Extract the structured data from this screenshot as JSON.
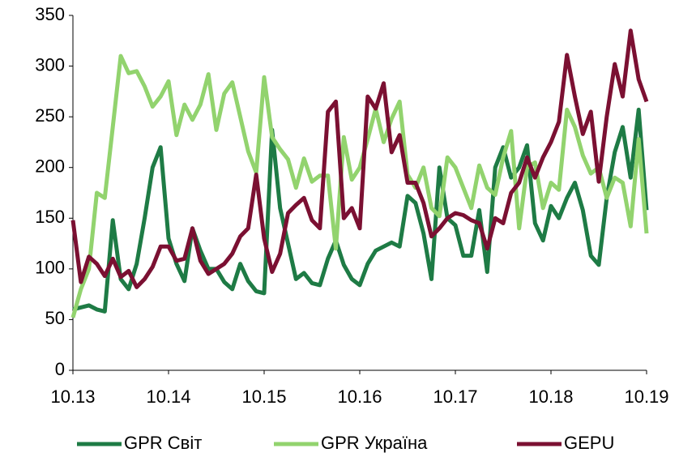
{
  "chart_data": {
    "type": "line",
    "categories": [
      "10.13",
      null,
      null,
      null,
      null,
      null,
      null,
      null,
      null,
      null,
      null,
      null,
      "10.14",
      null,
      null,
      null,
      null,
      null,
      null,
      null,
      null,
      null,
      null,
      null,
      "10.15",
      null,
      null,
      null,
      null,
      null,
      null,
      null,
      null,
      null,
      null,
      null,
      "10.16",
      null,
      null,
      null,
      null,
      null,
      null,
      null,
      null,
      null,
      null,
      null,
      "10.17",
      null,
      null,
      null,
      null,
      null,
      null,
      null,
      null,
      null,
      null,
      null,
      "10.18",
      null,
      null,
      null,
      null,
      null,
      null,
      null,
      null,
      null,
      null,
      null,
      "10.19"
    ],
    "series": [
      {
        "name": "GPR Світ",
        "color": "#1e7b45",
        "values": [
          60,
          62,
          64,
          60,
          58,
          148,
          90,
          80,
          105,
          150,
          200,
          220,
          130,
          105,
          88,
          140,
          118,
          100,
          100,
          87,
          80,
          105,
          88,
          78,
          76,
          237,
          160,
          125,
          90,
          96,
          86,
          84,
          110,
          128,
          104,
          90,
          84,
          105,
          118,
          122,
          126,
          122,
          172,
          165,
          135,
          90,
          200,
          150,
          143,
          113,
          113,
          158,
          97,
          200,
          220,
          190,
          200,
          222,
          145,
          128,
          162,
          150,
          170,
          185,
          158,
          113,
          104,
          170,
          215,
          240,
          190,
          257,
          158
        ]
      },
      {
        "name": "GPR Україна",
        "color": "#92d36e",
        "values": [
          52,
          80,
          100,
          175,
          170,
          240,
          310,
          293,
          295,
          280,
          260,
          270,
          285,
          232,
          262,
          247,
          262,
          292,
          237,
          273,
          284,
          250,
          216,
          195,
          289,
          230,
          218,
          208,
          180,
          209,
          186,
          192,
          192,
          120,
          230,
          188,
          200,
          228,
          258,
          225,
          248,
          265,
          193,
          180,
          200,
          160,
          152,
          210,
          200,
          180,
          160,
          202,
          180,
          173,
          210,
          236,
          140,
          200,
          205,
          160,
          185,
          178,
          257,
          240,
          212,
          194,
          200,
          170,
          190,
          185,
          142,
          228,
          135
        ]
      },
      {
        "name": "GEPU",
        "color": "#7b1032",
        "values": [
          148,
          87,
          112,
          105,
          93,
          110,
          92,
          98,
          82,
          90,
          102,
          122,
          122,
          108,
          110,
          140,
          108,
          95,
          100,
          105,
          115,
          132,
          140,
          193,
          130,
          97,
          115,
          155,
          163,
          170,
          148,
          140,
          255,
          265,
          150,
          160,
          140,
          270,
          258,
          283,
          215,
          232,
          185,
          185,
          165,
          132,
          140,
          150,
          155,
          153,
          148,
          145,
          120,
          150,
          145,
          175,
          185,
          210,
          190,
          210,
          225,
          245,
          311,
          270,
          233,
          255,
          186,
          250,
          302,
          270,
          335,
          287,
          265
        ]
      }
    ],
    "ylim": [
      0,
      350
    ],
    "yticks": [
      0,
      50,
      100,
      150,
      200,
      250,
      300,
      350
    ],
    "grid": false
  }
}
